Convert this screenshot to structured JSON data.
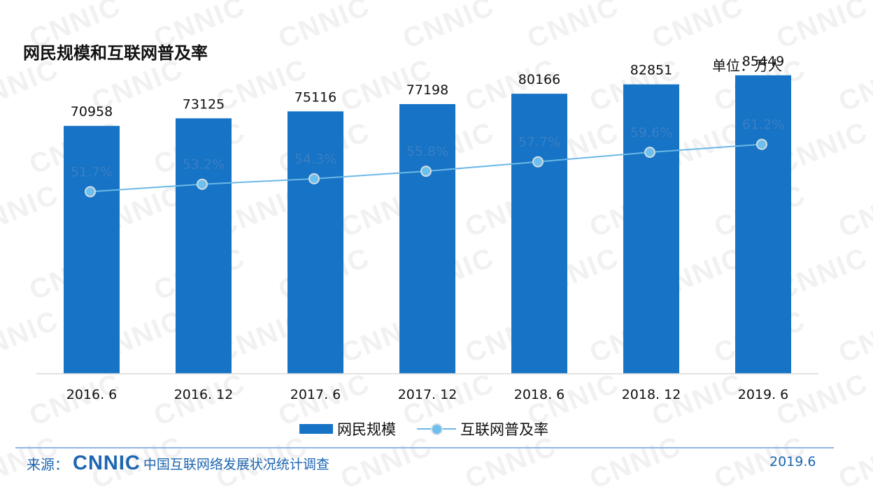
{
  "chart_data": {
    "type": "bar",
    "title": "网民规模和互联网普及率",
    "unit_label": "单位：万人",
    "categories": [
      "2016. 6",
      "2016. 12",
      "2017. 6",
      "2017. 12",
      "2018. 6",
      "2018. 12",
      "2019. 6"
    ],
    "series": [
      {
        "name": "网民规模",
        "type": "bar",
        "values": [
          70958,
          73125,
          75116,
          77198,
          80166,
          82851,
          85449
        ]
      },
      {
        "name": "互联网普及率",
        "type": "line",
        "values": [
          51.7,
          53.2,
          54.3,
          55.8,
          57.7,
          59.6,
          61.2
        ],
        "value_labels": [
          "51.7%",
          "53.2%",
          "54.3%",
          "55.8%",
          "57.7%",
          "59.6%",
          "61.2%"
        ]
      }
    ],
    "bar_ylim": [
      0,
      100000
    ],
    "grid": false,
    "legend_position": "bottom",
    "colors": {
      "bar": "#1673c5",
      "line": "#6cb8e6",
      "marker": "#6cc0ee",
      "rate_label": "#3a7fc4"
    }
  },
  "footer": {
    "source_label": "来源：",
    "logo_text": "CNNIC",
    "organization": "中国互联网络发展状况统计调查",
    "date": "2019.6"
  }
}
